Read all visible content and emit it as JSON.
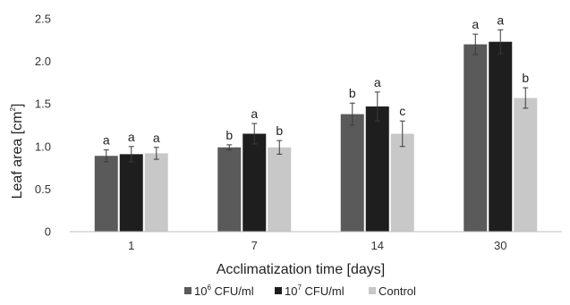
{
  "chart_data": {
    "type": "bar",
    "xlabel": "Acclimatization time [days]",
    "ylabel": {
      "main": "Leaf area [cm",
      "sup": "2",
      "tail": "]"
    },
    "ylim": [
      0,
      2.5
    ],
    "yticks": [
      "0",
      "0.5",
      "1.0",
      "1.5",
      "2.0",
      "2.5"
    ],
    "grid": false,
    "legend_position": "bottom",
    "categories": [
      "1",
      "7",
      "14",
      "30"
    ],
    "series": [
      {
        "name": {
          "pre": "10",
          "sup": "6",
          "post": " CFU/ml"
        },
        "color": "#5a5a5a",
        "values": [
          0.89,
          0.99,
          1.38,
          2.2
        ],
        "errors": [
          0.07,
          0.03,
          0.13,
          0.12
        ],
        "letters": [
          "a",
          "b",
          "b",
          "a"
        ]
      },
      {
        "name": {
          "pre": "10",
          "sup": "7",
          "post": " CFU/ml"
        },
        "color": "#1e1e1e",
        "values": [
          0.91,
          1.15,
          1.47,
          2.23
        ],
        "errors": [
          0.09,
          0.12,
          0.17,
          0.14
        ],
        "letters": [
          "a",
          "a",
          "a",
          "a"
        ]
      },
      {
        "name": {
          "pre": "Control",
          "sup": "",
          "post": ""
        },
        "color": "#c8c8c8",
        "values": [
          0.92,
          0.99,
          1.15,
          1.57
        ],
        "errors": [
          0.07,
          0.08,
          0.15,
          0.12
        ],
        "letters": [
          "a",
          "b",
          "c",
          "b"
        ]
      }
    ]
  }
}
